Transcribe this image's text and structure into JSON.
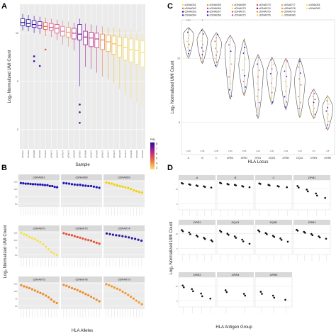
{
  "panels": {
    "A": {
      "letter": "A"
    },
    "B": {
      "letter": "B"
    },
    "C": {
      "letter": "C"
    },
    "D": {
      "letter": "D"
    }
  },
  "chart_data": [
    {
      "panel": "A",
      "type": "box",
      "xlabel": "Sample",
      "ylabel": "Log₂ Normalized UMI Count",
      "ylim": [
        -2,
        13
      ],
      "yticks": [
        0,
        5,
        10
      ],
      "categories": [
        "cDNA061",
        "cDNA063",
        "cDNA068",
        "cDNA064",
        "cDNA062",
        "cDNA072",
        "cDNA073",
        "cDNA074",
        "cDNA070",
        "cDNA065",
        "cDNA067",
        "cDNA066",
        "cDNA071",
        "cDNA069",
        "cDNA075",
        "cDNA077",
        "cDNA076",
        "cDNA078",
        "cDNA079",
        "cDNA080",
        "cDNA081",
        "cDNA082"
      ],
      "series": [
        {
          "q": [
            10.3,
            10.8,
            11.1,
            11.5,
            12.0
          ],
          "outliers": [],
          "color": "#1a0a8a"
        },
        {
          "q": [
            10.2,
            10.7,
            11.0,
            11.4,
            11.9
          ],
          "outliers": [],
          "color": "#22099a"
        },
        {
          "q": [
            10.0,
            10.6,
            10.9,
            11.3,
            11.8
          ],
          "outliers": [
            7.6,
            7.1
          ],
          "color": "#3b06a6"
        },
        {
          "q": [
            9.9,
            10.5,
            10.8,
            11.2,
            11.7
          ],
          "outliers": [
            6.6
          ],
          "color": "#5a04a8"
        },
        {
          "q": [
            9.7,
            10.4,
            10.7,
            11.1,
            11.6
          ],
          "outliers": [
            8.3
          ],
          "color": "#e8563a"
        },
        {
          "q": [
            9.6,
            10.3,
            10.6,
            11.0,
            11.5
          ],
          "outliers": [],
          "color": "#e0507a"
        },
        {
          "q": [
            9.3,
            10.0,
            10.5,
            10.9,
            11.4
          ],
          "outliers": [],
          "color": "#d8467f"
        },
        {
          "q": [
            8.8,
            9.7,
            10.2,
            10.7,
            11.3
          ],
          "outliers": [],
          "color": "#e07a92"
        },
        {
          "q": [
            8.6,
            9.6,
            10.1,
            10.6,
            11.2
          ],
          "outliers": [],
          "color": "#e89c6a"
        },
        {
          "q": [
            8.2,
            9.4,
            10.0,
            10.5,
            11.1
          ],
          "outliers": [],
          "color": "#c02c7c"
        },
        {
          "q": [
            4.5,
            9.3,
            9.9,
            10.9,
            11.5
          ],
          "outliers": [
            2.6,
            1.8,
            0.7
          ],
          "color": "#5c0a9c"
        },
        {
          "q": [
            6.5,
            8.8,
            9.6,
            10.2,
            11.0
          ],
          "outliers": [],
          "color": "#a02090"
        },
        {
          "q": [
            6.3,
            8.6,
            9.5,
            10.1,
            10.9
          ],
          "outliers": [],
          "color": "#b8258a"
        },
        {
          "q": [
            5.9,
            8.5,
            9.4,
            10.0,
            10.8
          ],
          "outliers": [],
          "color": "#c93582"
        },
        {
          "q": [
            5.5,
            8.3,
            9.3,
            9.9,
            10.7
          ],
          "outliers": [],
          "color": "#ea8a4a"
        },
        {
          "q": [
            5.2,
            8.1,
            9.1,
            9.8,
            10.6
          ],
          "outliers": [],
          "color": "#f2a840"
        },
        {
          "q": [
            4.8,
            7.8,
            8.9,
            9.7,
            10.6
          ],
          "outliers": [],
          "color": "#f6bf3e"
        },
        {
          "q": [
            4.2,
            7.5,
            8.7,
            9.6,
            10.5
          ],
          "outliers": [],
          "color": "#f6cf52"
        },
        {
          "q": [
            3.6,
            7.2,
            8.5,
            9.5,
            10.4
          ],
          "outliers": [],
          "color": "#f7d55e"
        },
        {
          "q": [
            3.2,
            7.0,
            8.3,
            9.4,
            10.3
          ],
          "outliers": [],
          "color": "#f8da66"
        },
        {
          "q": [
            2.8,
            6.8,
            8.2,
            9.3,
            10.2
          ],
          "outliers": [],
          "color": "#f9df6e"
        },
        {
          "q": [
            2.4,
            6.5,
            8.0,
            9.2,
            10.1
          ],
          "outliers": [],
          "color": "#fae476"
        }
      ],
      "legend": {
        "title": "RIN",
        "ticks": [
          "8",
          "7",
          "6",
          "5",
          "4",
          "3"
        ],
        "placement": "right"
      }
    },
    {
      "panel": "C",
      "type": "violin",
      "xlabel": "HLA Locus",
      "ylabel": "Log₂ Normalized UMI Count",
      "ylim": [
        2.5,
        13
      ],
      "yticks": [
        5,
        10
      ],
      "categories": [
        "A",
        "B",
        "C",
        "DRB1",
        "DRB3",
        "DPA1",
        "DQB1",
        "DRB3",
        "DQA1",
        "DRB4",
        "DRB5"
      ],
      "counts": [
        "n=36",
        "n=36",
        "n=36",
        "n=36",
        "n=35",
        "n=21",
        "n=31",
        "n=24",
        "n=22",
        "n=6",
        "n=5"
      ],
      "medians": [
        11.8,
        11.4,
        11.1,
        10.8,
        9.4,
        9.0,
        8.8,
        8.7,
        8.2,
        6.6,
        6.1
      ],
      "ranges": [
        [
          10.0,
          12.4
        ],
        [
          9.6,
          12.3
        ],
        [
          9.3,
          12.0
        ],
        [
          6.8,
          11.8
        ],
        [
          7.1,
          11.5
        ],
        [
          5.3,
          10.3
        ],
        [
          6.4,
          10.1
        ],
        [
          6.0,
          10.0
        ],
        [
          5.4,
          10.0
        ],
        [
          5.3,
          7.6
        ],
        [
          4.4,
          7.1
        ]
      ],
      "annotations": [
        "****",
        "*"
      ],
      "legend": {
        "entries": [
          "cDNA061",
          "cDNA062",
          "cDNA063",
          "cDNA064",
          "cDNA065",
          "cDNA066",
          "cDNA067",
          "cDNA068",
          "cDNA069",
          "cDNA070",
          "cDNA071",
          "cDNA072",
          "cDNA073",
          "cDNA074",
          "cDNA075",
          "cDNA076",
          "cDNA077",
          "cDNA078",
          "cDNA079",
          "cDNA080",
          "cDNA081",
          "cDNA082"
        ],
        "placement": "top"
      }
    },
    {
      "panel": "B",
      "type": "scatter-facets",
      "xlabel": "HLA Alleles",
      "ylabel": "Log₂ Normalized UMI Count",
      "ylim": [
        4,
        13
      ],
      "yticks": [
        5.0,
        7.5,
        10.0,
        12.5
      ],
      "facets": [
        {
          "label": "cDNA061",
          "color": "#1b12b4",
          "values": [
            12.0,
            11.9,
            11.8,
            11.8,
            11.7,
            11.6,
            11.6,
            11.5,
            11.5,
            11.4,
            11.3,
            11.3,
            11.0,
            11.0,
            10.7,
            10.6
          ]
        },
        {
          "label": "cDNA068",
          "color": "#1b12b4",
          "values": [
            12.0,
            11.9,
            11.8,
            11.6,
            11.5,
            11.4,
            11.4,
            11.2,
            11.1,
            11.0,
            11.0,
            10.8,
            10.6,
            10.4
          ]
        },
        {
          "label": "cDNA069",
          "color": "#f6d000",
          "values": [
            12.2,
            12.0,
            11.8,
            11.5,
            11.2,
            11.0,
            10.8,
            10.5,
            10.3,
            10.0,
            9.6,
            9.3,
            9.0,
            8.8
          ]
        },
        {
          "label": "cDNA070",
          "color": "#f4e24a",
          "values": [
            12.5,
            12.0,
            11.6,
            11.0,
            10.6,
            10.3,
            9.8,
            9.3,
            8.6,
            7.8,
            6.9,
            6.0,
            5.5,
            5.0
          ]
        },
        {
          "label": "cDNA073",
          "color": "#e84e36",
          "values": [
            12.3,
            12.0,
            11.8,
            11.6,
            11.3,
            11.0,
            10.8,
            10.5,
            10.2,
            10.0,
            9.8,
            9.4,
            9.1,
            8.8
          ]
        },
        {
          "label": "cDNA074",
          "color": "#2a1a9c",
          "values": [
            12.2,
            12.0,
            11.8,
            11.6,
            11.5,
            11.3,
            11.1,
            10.9,
            10.6,
            10.4,
            10.1,
            9.8
          ]
        },
        {
          "label": "cDNA075",
          "color": "#f08a28",
          "values": [
            12.0,
            11.6,
            11.3,
            11.0,
            10.6,
            10.2,
            9.8,
            9.4,
            9.0,
            8.5,
            7.9,
            7.2,
            6.5,
            6.0
          ]
        },
        {
          "label": "cDNA078",
          "color": "#f08a28",
          "values": [
            12.1,
            11.8,
            11.4,
            11.0,
            10.7,
            10.3,
            9.9,
            9.5,
            9.0,
            8.6,
            8.1,
            7.6,
            7.1,
            6.6
          ]
        },
        {
          "label": "cDNA079",
          "color": "#f29a30",
          "values": [
            12.3,
            12.0,
            11.6,
            11.2,
            10.8,
            10.4,
            9.8,
            9.3,
            8.7,
            8.1,
            7.5,
            6.8,
            6.2,
            5.6
          ]
        }
      ]
    },
    {
      "panel": "D",
      "type": "scatter-facets",
      "xlabel": "HLA Antigen Group",
      "ylabel": "Log₂ Normalized UMI Count",
      "ylim": [
        3,
        13
      ],
      "yticks": [
        5,
        10
      ],
      "facets": [
        {
          "label": "A",
          "values": [
            12.0,
            11.8,
            11.6,
            11.4,
            11.2,
            11.0,
            10.9,
            10.7,
            10.5
          ]
        },
        {
          "label": "B",
          "values": [
            12.1,
            11.9,
            11.7,
            11.5,
            11.4,
            11.2,
            11.0,
            10.8,
            10.6
          ]
        },
        {
          "label": "C",
          "values": [
            11.9,
            11.7,
            11.4,
            11.2,
            11.0,
            10.8,
            10.6
          ]
        },
        {
          "label": "DPB1",
          "values": [
            11.0,
            10.5,
            9.8,
            9.2,
            8.5,
            7.8,
            7.0
          ]
        },
        {
          "label": "DPB1",
          "values": [
            11.2,
            10.8,
            10.4,
            9.8,
            9.4,
            9.0,
            8.6,
            8.2,
            7.8,
            7.4
          ]
        },
        {
          "label": "DQA1",
          "values": [
            11.0,
            10.6,
            10.0,
            9.6,
            9.1,
            8.6,
            8.0,
            7.4,
            6.6
          ]
        },
        {
          "label": "DQB1",
          "values": [
            11.1,
            10.7,
            10.2,
            9.8,
            9.3,
            8.9,
            8.4,
            7.9,
            7.3
          ]
        },
        {
          "label": "DRB1",
          "values": [
            11.3,
            11.0,
            10.6,
            10.3,
            9.9,
            9.5,
            9.1,
            8.7,
            8.3
          ]
        },
        {
          "label": "DRB3",
          "values": [
            10.2,
            9.6,
            9.0,
            8.3,
            7.5,
            6.6,
            5.8
          ]
        },
        {
          "label": "DRB4",
          "values": [
            8.6,
            8.0,
            7.4,
            6.8
          ]
        },
        {
          "label": "DRB5",
          "values": [
            8.1,
            7.4,
            6.8,
            6.1,
            5.4
          ]
        }
      ]
    }
  ]
}
